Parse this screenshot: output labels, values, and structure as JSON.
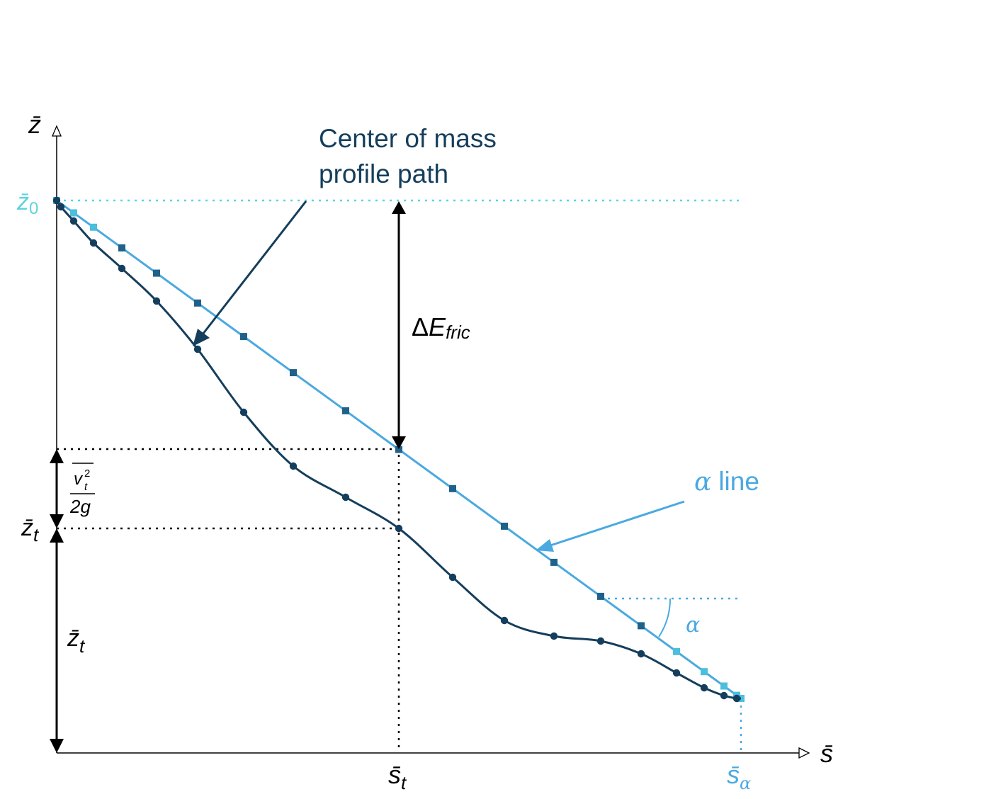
{
  "colors": {
    "profile": "#153e5c",
    "alpha_line": "#4aa9e0",
    "alpha_line_light": "#5dd3e0",
    "marker_dark": "#1f6189",
    "z0_level": "#5dd3e0",
    "axes": "#000000"
  },
  "axes": {
    "x_symbol": "s̄",
    "y_symbol": "z̄"
  },
  "labels": {
    "z0_base": "z̄",
    "z0_sub": "0",
    "zt_base": "z̄",
    "zt_sub": "t",
    "zt_height_base": "z̄",
    "zt_height_sub": "t",
    "st_base": "s̄",
    "st_sub": "t",
    "salpha_base": "s̄",
    "salpha_sub": "α",
    "velocity_numerator": "v",
    "velocity_sup": "2",
    "velocity_sub": "t",
    "velocity_denominator": "2g",
    "delta_e_delta": "Δ",
    "delta_e_base": "E",
    "delta_e_sub": "fric",
    "alpha_angle": "α"
  },
  "annotations": {
    "com_line1": "Center of mass",
    "com_line2": "profile path",
    "alpha_symbol": "α",
    "alpha_word": "line"
  }
}
